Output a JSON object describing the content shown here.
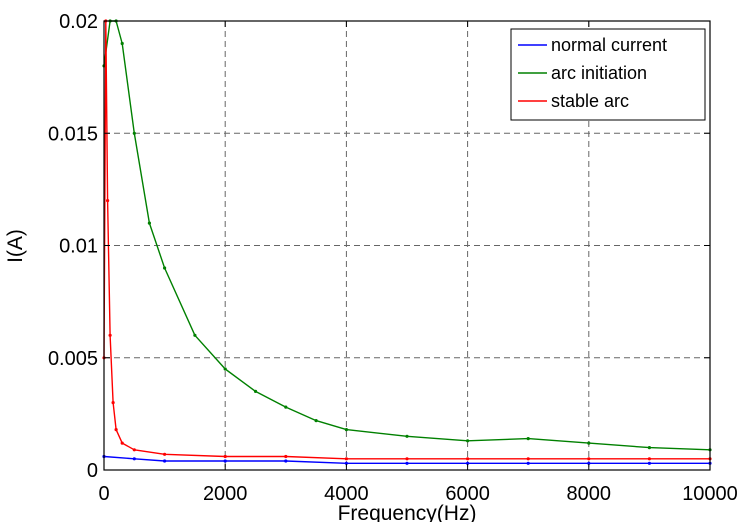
{
  "chart_data": {
    "type": "line",
    "title": "",
    "xlabel": "Frequency(Hz)",
    "ylabel": "I(A)",
    "xlim": [
      0,
      10000
    ],
    "ylim": [
      0,
      0.02
    ],
    "x_ticks": [
      0,
      2000,
      4000,
      6000,
      8000,
      10000
    ],
    "x_tick_labels": [
      "0",
      "2000",
      "4000",
      "6000",
      "8000",
      "10000"
    ],
    "y_ticks": [
      0,
      0.005,
      0.01,
      0.015,
      0.02
    ],
    "y_tick_labels": [
      "0",
      "0.005",
      "0.01",
      "0.015",
      "0.02"
    ],
    "grid": true,
    "legend_position": "top-right",
    "series": [
      {
        "name": "normal current",
        "color": "#0000ff",
        "x": [
          0,
          500,
          1000,
          2000,
          3000,
          4000,
          5000,
          6000,
          7000,
          8000,
          9000,
          10000
        ],
        "y": [
          0.0006,
          0.0005,
          0.0004,
          0.0004,
          0.0004,
          0.0003,
          0.0003,
          0.0003,
          0.0003,
          0.0003,
          0.0003,
          0.0003
        ]
      },
      {
        "name": "arc initiation",
        "color": "#008000",
        "x": [
          0,
          100,
          200,
          300,
          500,
          750,
          1000,
          1500,
          2000,
          2500,
          3000,
          3500,
          4000,
          5000,
          6000,
          7000,
          8000,
          9000,
          10000
        ],
        "y": [
          0.018,
          0.02,
          0.02,
          0.019,
          0.015,
          0.011,
          0.009,
          0.006,
          0.0045,
          0.0035,
          0.0028,
          0.0022,
          0.0018,
          0.0015,
          0.0013,
          0.0014,
          0.0012,
          0.001,
          0.0009
        ]
      },
      {
        "name": "stable arc",
        "color": "#ff0000",
        "x": [
          0,
          30,
          60,
          100,
          150,
          200,
          300,
          500,
          1000,
          2000,
          3000,
          4000,
          5000,
          6000,
          7000,
          8000,
          9000,
          10000
        ],
        "y": [
          0.005,
          0.02,
          0.012,
          0.006,
          0.003,
          0.0018,
          0.0012,
          0.0009,
          0.0007,
          0.0006,
          0.0006,
          0.0005,
          0.0005,
          0.0005,
          0.0005,
          0.0005,
          0.0005,
          0.0005
        ]
      }
    ]
  }
}
